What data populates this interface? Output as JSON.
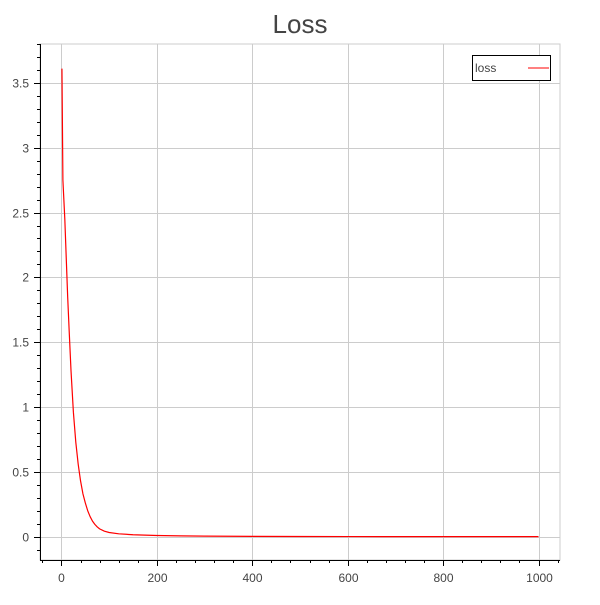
{
  "chart_data": {
    "type": "line",
    "title": "Loss",
    "xlabel": "",
    "ylabel": "",
    "xlim": [
      -45,
      1045
    ],
    "ylim": [
      -0.18,
      3.8
    ],
    "x_ticks": [
      0,
      200,
      400,
      600,
      800,
      1000
    ],
    "x_tick_labels": [
      "0",
      "200",
      "400",
      "600",
      "800",
      "1000"
    ],
    "y_ticks": [
      0,
      0.5,
      1,
      1.5,
      2,
      2.5,
      3,
      3.5
    ],
    "y_tick_labels": [
      "0",
      "0.5",
      "1",
      "1.5",
      "2",
      "2.5",
      "3",
      "3.5"
    ],
    "grid": true,
    "legend_position": "top-right",
    "series": [
      {
        "name": "loss",
        "color": "#ff0000",
        "x": [
          1,
          3,
          5,
          7,
          10,
          13,
          16,
          20,
          25,
          30,
          35,
          40,
          45,
          50,
          55,
          60,
          65,
          70,
          75,
          80,
          90,
          100,
          120,
          150,
          200,
          250,
          300,
          400,
          500,
          600,
          700,
          800,
          900,
          1000
        ],
        "y": [
          3.61,
          2.75,
          2.6,
          2.45,
          2.15,
          1.85,
          1.6,
          1.28,
          0.96,
          0.73,
          0.56,
          0.43,
          0.33,
          0.26,
          0.2,
          0.155,
          0.12,
          0.095,
          0.075,
          0.06,
          0.042,
          0.032,
          0.022,
          0.015,
          0.009,
          0.006,
          0.004,
          0.002,
          0.0012,
          0.0008,
          0.0005,
          0.0003,
          0.0002,
          0.0001
        ]
      }
    ]
  }
}
